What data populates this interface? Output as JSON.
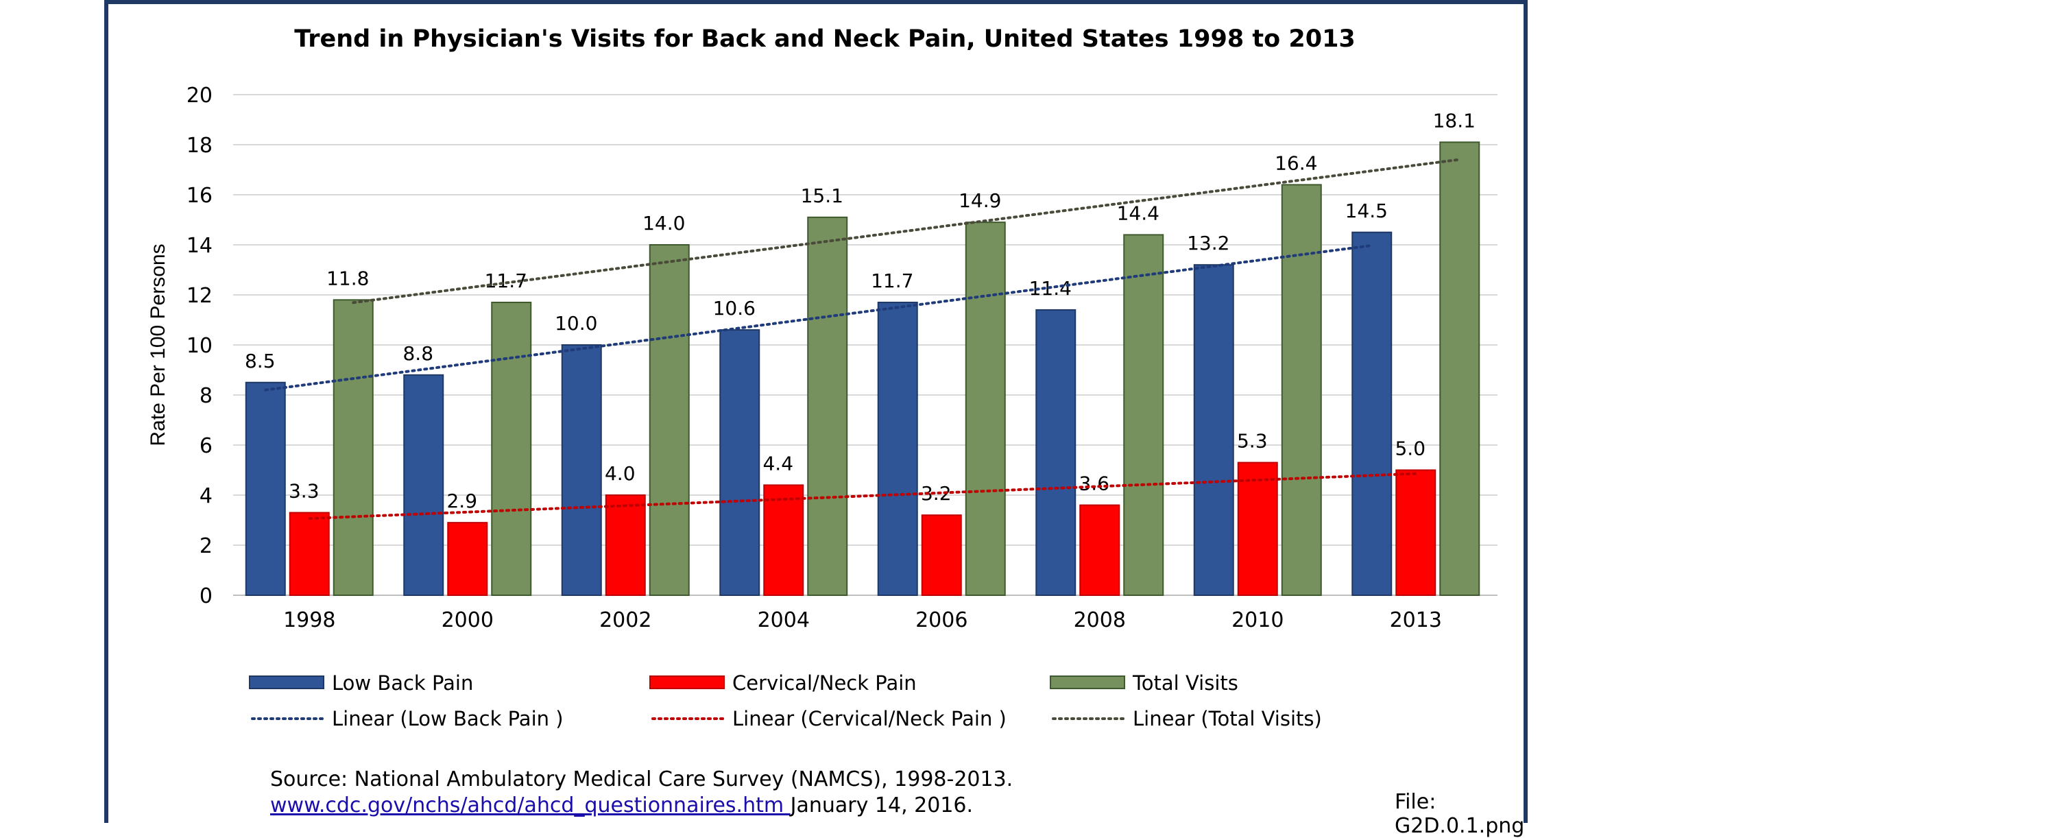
{
  "chart_data": {
    "type": "bar",
    "title": "Trend in Physician's Visits for Back and Neck Pain, United States 1998 to 2013",
    "ylabel": "Rate Per 100 Persons",
    "xlabel": "",
    "ylim": [
      0,
      20
    ],
    "yticks": [
      "0",
      "2",
      "4",
      "6",
      "8",
      "10",
      "12",
      "14",
      "16",
      "18",
      "20"
    ],
    "grid": true,
    "legend_position": "bottom",
    "categories": [
      "1998",
      "2000",
      "2002",
      "2004",
      "2006",
      "2008",
      "2010",
      "2013"
    ],
    "series": [
      {
        "name": "Low Back Pain",
        "color": "#2f5597",
        "values": [
          8.5,
          8.8,
          10.0,
          10.6,
          11.7,
          11.4,
          13.2,
          14.5
        ],
        "labels": [
          "8.5",
          "8.8",
          "10.0",
          "10.6",
          "11.7",
          "11.4",
          "13.2",
          "14.5"
        ]
      },
      {
        "name": "Cervical/Neck Pain",
        "color": "#ff0000",
        "values": [
          3.3,
          2.9,
          4.0,
          4.4,
          3.2,
          3.6,
          5.3,
          5.0
        ],
        "labels": [
          "3.3",
          "2.9",
          "4.0",
          "4.4",
          "3.2",
          "3.6",
          "5.3",
          "5.0"
        ]
      },
      {
        "name": "Total Visits",
        "color": "#76905e",
        "values": [
          11.8,
          11.7,
          14.0,
          15.1,
          14.9,
          14.4,
          16.4,
          18.1
        ],
        "labels": [
          "11.8",
          "11.7",
          "14.0",
          "15.1",
          "14.9",
          "14.4",
          "16.4",
          "18.1"
        ]
      }
    ],
    "trendlines": [
      {
        "name": "Linear (Low Back Pain )",
        "color": "#1f3b7a",
        "style": "dotted",
        "of": "Low Back Pain"
      },
      {
        "name": "Linear (Cervical/Neck Pain )",
        "color": "#c00000",
        "style": "dotted",
        "of": "Cervical/Neck Pain"
      },
      {
        "name": "Linear (Total Visits)",
        "color": "#4a4a3a",
        "style": "dotted",
        "of": "Total Visits"
      }
    ]
  },
  "footer": {
    "source_text": "Source: National Ambulatory Medical Care Survey (NAMCS), 1998-2013.",
    "link_text": "www.cdc.gov/nchs/ahcd/ahcd_questionnaires.htm ",
    "date_text": "January 14, 2016.",
    "file_ref": "File: G2D.0.1.png"
  }
}
